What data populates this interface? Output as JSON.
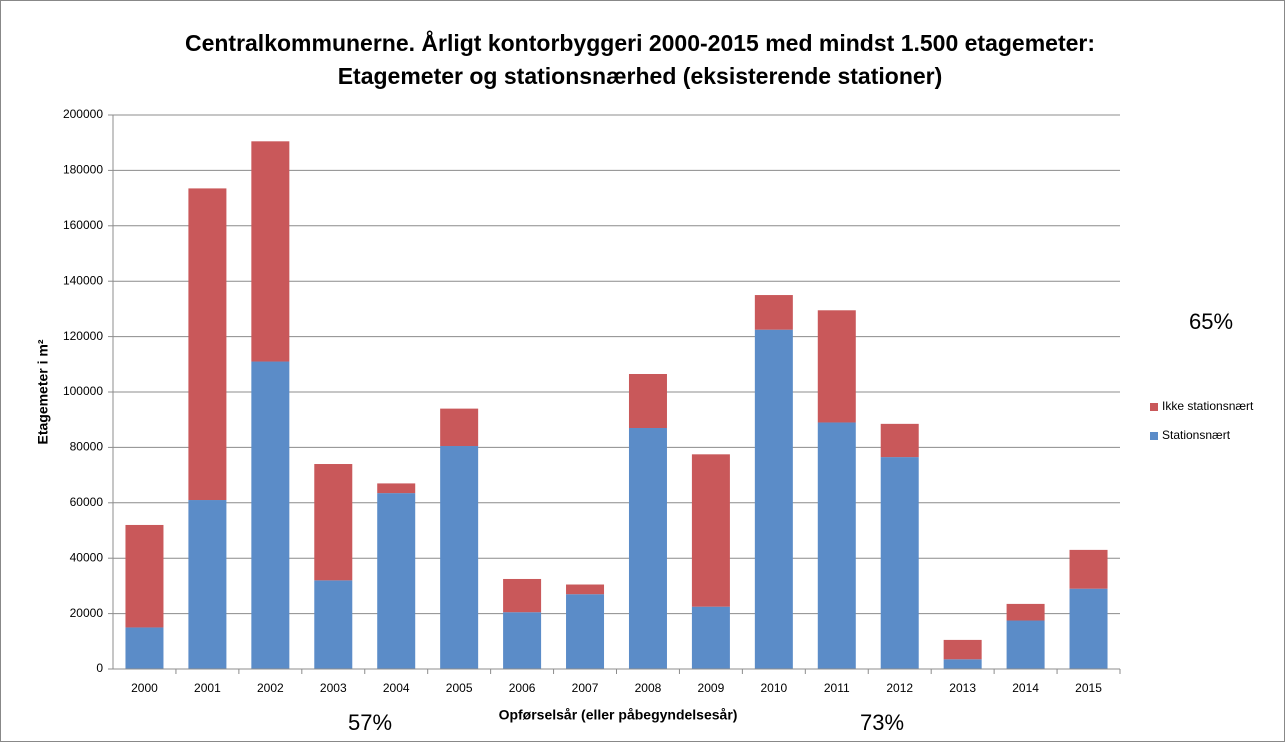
{
  "chart_data": {
    "type": "stacked_bar",
    "title": [
      "Centralkommunerne. Årligt kontorbyggeri 2000-2015 med mindst 1.500 etagemeter:",
      "Etagemeter og stationsnærhed (eksisterende stationer)"
    ],
    "xlabel": "Opførselsår (eller påbegyndelsesår)",
    "ylabel": "Etagemeter i m²",
    "categories": [
      "2000",
      "2001",
      "2002",
      "2003",
      "2004",
      "2005",
      "2006",
      "2007",
      "2008",
      "2009",
      "2010",
      "2011",
      "2012",
      "2013",
      "2014",
      "2015"
    ],
    "series": [
      {
        "name": "Stationsnært",
        "color": "#5b8cc8",
        "values": [
          15000,
          61000,
          111000,
          32000,
          63500,
          80500,
          20500,
          27000,
          87000,
          22500,
          122500,
          89000,
          76500,
          3500,
          17500,
          29000
        ]
      },
      {
        "name": "Ikke stationsnært",
        "color": "#c9585a",
        "values": [
          37000,
          112500,
          79500,
          42000,
          3500,
          13500,
          12000,
          3500,
          19500,
          55000,
          12500,
          40500,
          12000,
          7000,
          6000,
          14000
        ]
      }
    ],
    "ylim": [
      0,
      200000
    ],
    "yticks": [
      0,
      20000,
      40000,
      60000,
      80000,
      100000,
      120000,
      140000,
      160000,
      180000,
      200000
    ],
    "grid": true,
    "legend": "right",
    "annotations": [
      "65%",
      "57%",
      "73%"
    ]
  }
}
